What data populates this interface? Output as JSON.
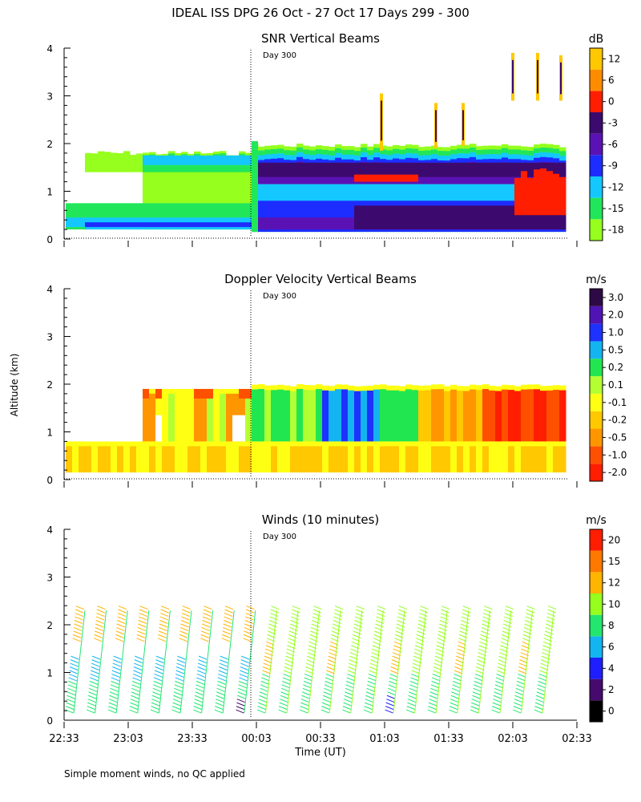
{
  "figure_title": "IDEAL ISS DPG  26 Oct - 27 Oct 17 Days 299 - 300",
  "footnote": "Simple moment winds, no QC applied",
  "colors": {
    "snr": [
      "#96ff1e",
      "#22e65a",
      "#14c8ff",
      "#1e2dff",
      "#5a12b4",
      "#3c0a6e",
      "#ff1e00",
      "#ff8c00",
      "#ffc800"
    ],
    "velocity": [
      "#ff1e00",
      "#ff5000",
      "#ff9600",
      "#ffc800",
      "#ffff14",
      "#b4ff32",
      "#22e650",
      "#14b4f0",
      "#1e32ff",
      "#5014b4",
      "#2d0a46"
    ],
    "winds": [
      "#000000",
      "#460a6e",
      "#1e1eff",
      "#14b4f0",
      "#22e66e",
      "#96ff1e",
      "#ffb400",
      "#ff7800",
      "#ff1e00"
    ]
  },
  "chart_data": [
    {
      "type": "heatmap",
      "title": "SNR Vertical Beams",
      "xlabel": "",
      "ylabel": "",
      "yticks": [
        "0",
        "1",
        "2",
        "3",
        "4"
      ],
      "ylim": [
        0,
        4
      ],
      "day_marker": "Day 300",
      "colorbar": {
        "unit": "dB",
        "bins": [
          {
            "label": "-18",
            "range": [
              -21,
              -18
            ]
          },
          {
            "label": "-15",
            "range": [
              -18,
              -15
            ]
          },
          {
            "label": "-12",
            "range": [
              -15,
              -12
            ]
          },
          {
            "label": "-9",
            "range": [
              -12,
              -9
            ]
          },
          {
            "label": "-6",
            "range": [
              -9,
              -6
            ]
          },
          {
            "label": "-3",
            "range": [
              -6,
              -3
            ]
          },
          {
            "label": "0",
            "range": [
              -3,
              0
            ]
          },
          {
            "label": "6",
            "range": [
              0,
              6
            ]
          },
          {
            "label": "12",
            "range": [
              6,
              12
            ]
          }
        ],
        "tick_labels": [
          "-18",
          "-15",
          "-12",
          "-9",
          "-6",
          "-3",
          "0",
          "6",
          "12"
        ]
      },
      "summary_profile": [
        {
          "time": "22:33",
          "echo_top_km": 0.8
        },
        {
          "time": "22:48",
          "echo_top_km": 1.8
        },
        {
          "time": "23:03",
          "echo_top_km": 1.9
        },
        {
          "time": "23:33",
          "echo_top_km": 1.9
        },
        {
          "time": "23:58",
          "echo_top_km": 2.0
        },
        {
          "time": "00:33",
          "echo_top_km": 1.9
        },
        {
          "time": "01:03",
          "echo_top_km": 1.9
        },
        {
          "time": "01:33",
          "echo_top_km": 1.95
        },
        {
          "time": "02:03",
          "echo_top_km": 1.9
        },
        {
          "time": "02:23",
          "echo_top_km": 1.9
        }
      ]
    },
    {
      "type": "heatmap",
      "title": "Doppler Velocity Vertical Beams",
      "xlabel": "",
      "ylabel": "Altitude (km)",
      "yticks": [
        "0",
        "1",
        "2",
        "3",
        "4"
      ],
      "ylim": [
        0,
        4
      ],
      "day_marker": "Day 300",
      "colorbar": {
        "unit": "m/s",
        "tick_labels": [
          "-2.0",
          "-1.0",
          "-0.5",
          "-0.2",
          "-0.1",
          "0.1",
          "0.2",
          "0.5",
          "1.0",
          "2.0",
          "3.0"
        ]
      },
      "summary_profile": [
        {
          "time": "23:33",
          "mean_velocity_ms": 0.1
        },
        {
          "time": "00:03",
          "mean_velocity_ms": 0.2
        },
        {
          "time": "00:33",
          "mean_velocity_ms": 1.0
        },
        {
          "time": "01:03",
          "mean_velocity_ms": 0.1
        },
        {
          "time": "01:33",
          "mean_velocity_ms": -0.5
        },
        {
          "time": "02:03",
          "mean_velocity_ms": -1.0
        }
      ]
    },
    {
      "type": "scatter",
      "title": "Winds (10 minutes)",
      "xlabel": "Time (UT)",
      "ylabel": "",
      "yticks": [
        "0",
        "1",
        "2",
        "3",
        "4"
      ],
      "xticks": [
        "22:33",
        "23:03",
        "23:33",
        "00:03",
        "00:33",
        "01:03",
        "01:33",
        "02:03",
        "02:33"
      ],
      "ylim": [
        0,
        4
      ],
      "day_marker": "Day 300",
      "colorbar": {
        "unit": "m/s",
        "tick_labels": [
          "0",
          "2",
          "4",
          "6",
          "8",
          "10",
          "12",
          "15",
          "20"
        ]
      },
      "profile_times": [
        "22:38",
        "22:48",
        "22:58",
        "23:08",
        "23:18",
        "23:28",
        "23:38",
        "23:48",
        "23:58",
        "00:08",
        "00:18",
        "00:28",
        "00:38",
        "00:48",
        "00:58",
        "01:08",
        "01:18",
        "01:28",
        "01:38",
        "01:48",
        "01:58",
        "02:08",
        "02:18"
      ],
      "wind_speed_summary_ms": [
        {
          "time": "22:38",
          "lower_km": 8,
          "upper_km": 14
        },
        {
          "time": "23:08",
          "lower_km": 8,
          "upper_km": 14
        },
        {
          "time": "23:38",
          "lower_km": 8,
          "upper_km": 13
        },
        {
          "time": "00:08",
          "lower_km": 9,
          "upper_km": 11
        },
        {
          "time": "00:38",
          "lower_km": 10,
          "upper_km": 11
        },
        {
          "time": "01:08",
          "lower_km": 11,
          "upper_km": 11
        },
        {
          "time": "01:38",
          "lower_km": 10,
          "upper_km": 11
        },
        {
          "time": "02:08",
          "lower_km": 10,
          "upper_km": 11
        }
      ]
    }
  ]
}
